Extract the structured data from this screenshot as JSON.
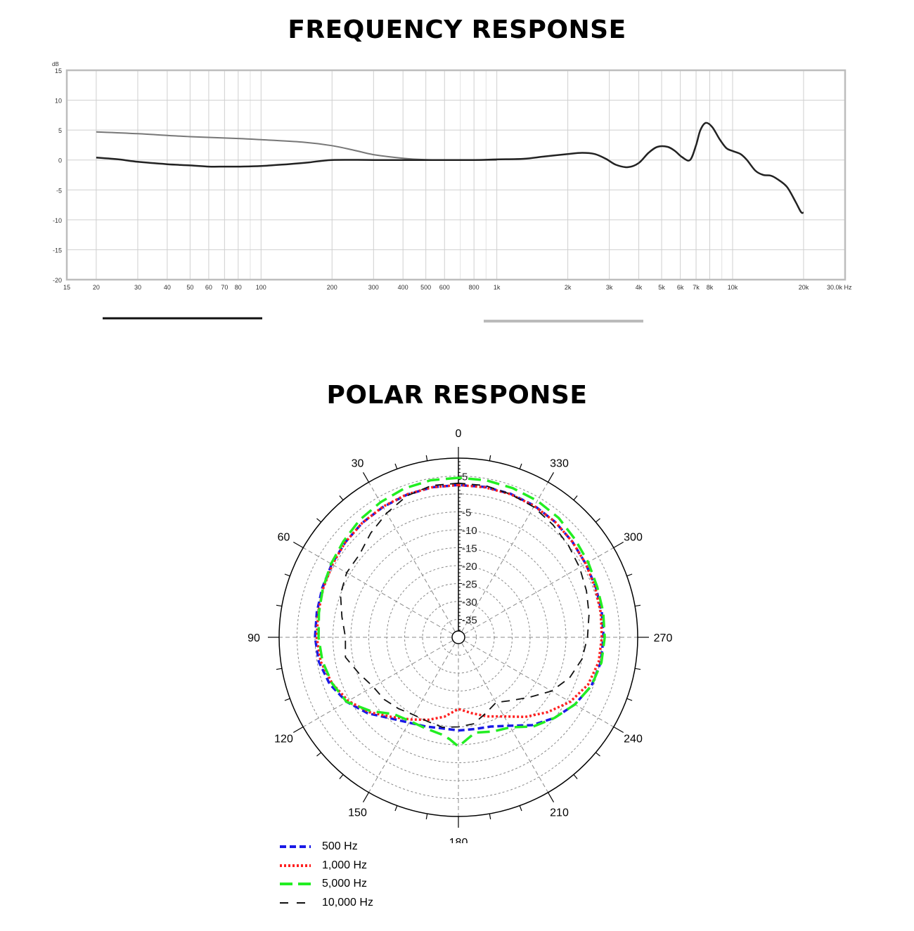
{
  "titles": {
    "frequency": "FREQUENCY RESPONSE",
    "polar": "POLAR RESPONSE"
  },
  "chart_data": [
    {
      "type": "line",
      "title": "FREQUENCY RESPONSE",
      "ylabel": "dB",
      "xunit": "Hz",
      "xscale": "log",
      "xlim": [
        15,
        30000
      ],
      "ylim": [
        -20,
        15
      ],
      "grid": true,
      "x_ticks": [
        {
          "value": 15,
          "label": "15"
        },
        {
          "value": 20,
          "label": "20"
        },
        {
          "value": 30,
          "label": "30"
        },
        {
          "value": 40,
          "label": "40"
        },
        {
          "value": 50,
          "label": "50"
        },
        {
          "value": 60,
          "label": "60"
        },
        {
          "value": 70,
          "label": "70"
        },
        {
          "value": 80,
          "label": "80"
        },
        {
          "value": 100,
          "label": "100"
        },
        {
          "value": 200,
          "label": "200"
        },
        {
          "value": 300,
          "label": "300"
        },
        {
          "value": 400,
          "label": "400"
        },
        {
          "value": 500,
          "label": "500"
        },
        {
          "value": 600,
          "label": "600"
        },
        {
          "value": 800,
          "label": "800"
        },
        {
          "value": 1000,
          "label": "1k"
        },
        {
          "value": 2000,
          "label": "2k"
        },
        {
          "value": 3000,
          "label": "3k"
        },
        {
          "value": 4000,
          "label": "4k"
        },
        {
          "value": 5000,
          "label": "5k"
        },
        {
          "value": 6000,
          "label": "6k"
        },
        {
          "value": 7000,
          "label": "7k"
        },
        {
          "value": 8000,
          "label": "8k"
        },
        {
          "value": 10000,
          "label": "10k"
        },
        {
          "value": 20000,
          "label": "20k"
        },
        {
          "value": 30000,
          "label": "30.0k Hz"
        }
      ],
      "x_minor_grid": [
        90,
        700,
        900,
        9000
      ],
      "y_ticks": [
        15,
        10,
        5,
        0,
        -5,
        -10,
        -15,
        -20
      ],
      "series": [
        {
          "color": "#777777",
          "x": [
            20,
            30,
            50,
            80,
            100,
            150,
            200,
            250,
            300,
            400,
            500,
            600,
            800,
            1000
          ],
          "values": [
            4.7,
            4.4,
            3.9,
            3.6,
            3.4,
            3.0,
            2.4,
            1.6,
            0.9,
            0.3,
            0.05,
            0.0,
            0.0,
            0.0
          ]
        },
        {
          "color": "#222222",
          "x": [
            20,
            25,
            30,
            40,
            50,
            60,
            70,
            80,
            100,
            130,
            160,
            200,
            300,
            500,
            800,
            1000,
            1300,
            1600,
            2000,
            2300,
            2600,
            2900,
            3200,
            3600,
            4000,
            4400,
            4800,
            5300,
            5700,
            6100,
            6600,
            7000,
            7300,
            7700,
            8200,
            8800,
            9400,
            10000,
            10800,
            11500,
            12500,
            13500,
            14500,
            15500,
            17000,
            18500,
            19500,
            20000
          ],
          "values": [
            0.4,
            0.1,
            -0.3,
            -0.7,
            -0.9,
            -1.1,
            -1.1,
            -1.1,
            -1.0,
            -0.7,
            -0.4,
            0.0,
            0.0,
            0.0,
            0.0,
            0.1,
            0.2,
            0.6,
            1.0,
            1.2,
            1.0,
            0.2,
            -0.8,
            -1.2,
            -0.5,
            1.2,
            2.2,
            2.2,
            1.5,
            0.5,
            0.0,
            2.5,
            5.0,
            6.2,
            5.5,
            3.5,
            2.0,
            1.5,
            1.0,
            0.0,
            -1.8,
            -2.5,
            -2.6,
            -3.2,
            -4.5,
            -7.0,
            -8.7,
            -8.8
          ]
        }
      ]
    },
    {
      "type": "polar",
      "title": "POLAR RESPONSE",
      "rlim": [
        -40,
        10
      ],
      "r_ticks": [
        -35,
        -30,
        -25,
        -20,
        -15,
        -10,
        -5,
        0,
        5
      ],
      "r_tick_labels": [
        "-35",
        "-30",
        "-25",
        "-20",
        "-15",
        "-10",
        "-5",
        "",
        "5"
      ],
      "angle_labels": [
        "0",
        "30",
        "60",
        "90",
        "120",
        "150",
        "180",
        "210",
        "240",
        "270",
        "300",
        "330"
      ],
      "angle_direction": "counterclockwise",
      "series": [
        {
          "name": "500 Hz",
          "color": "#1a1ae6",
          "angles": [
            0,
            10,
            20,
            30,
            40,
            50,
            60,
            70,
            80,
            90,
            100,
            110,
            120,
            130,
            140,
            150,
            160,
            170,
            180,
            190,
            200,
            210,
            220,
            230,
            240,
            250,
            260,
            270,
            280,
            290,
            300,
            310,
            320,
            330,
            340,
            350
          ],
          "values": [
            2.5,
            2.5,
            2.3,
            2.0,
            1.7,
            1.2,
            0.8,
            0.4,
            0.1,
            0.0,
            -0.5,
            -1.8,
            -4.0,
            -7.0,
            -10.5,
            -12.5,
            -13.5,
            -14.2,
            -14.0,
            -14.0,
            -13.5,
            -11.5,
            -8.0,
            -5.0,
            -2.5,
            -0.5,
            0.3,
            0.5,
            0.6,
            0.8,
            1.0,
            1.5,
            2.0,
            2.4,
            2.6,
            2.6
          ]
        },
        {
          "name": "1,000 Hz",
          "color": "#ff2020",
          "angles": [
            0,
            10,
            20,
            30,
            40,
            50,
            60,
            70,
            80,
            90,
            100,
            110,
            120,
            130,
            140,
            150,
            160,
            170,
            180,
            190,
            200,
            210,
            220,
            230,
            240,
            250,
            260,
            270,
            280,
            290,
            300,
            310,
            320,
            330,
            340,
            350
          ],
          "values": [
            2.5,
            2.5,
            2.4,
            2.1,
            1.7,
            1.2,
            0.6,
            0.1,
            -0.3,
            -0.5,
            -1.0,
            -2.5,
            -4.5,
            -7.5,
            -11.0,
            -13.5,
            -15.5,
            -17.5,
            -20.0,
            -18.5,
            -16.5,
            -14.5,
            -11.0,
            -7.5,
            -4.0,
            -1.5,
            -0.3,
            0.0,
            0.3,
            0.6,
            1.0,
            1.5,
            2.0,
            2.3,
            2.5,
            2.5
          ]
        },
        {
          "name": "5,000 Hz",
          "color": "#22ee22",
          "angles": [
            0,
            10,
            20,
            30,
            40,
            50,
            60,
            70,
            80,
            90,
            100,
            110,
            120,
            130,
            140,
            150,
            160,
            170,
            175,
            180,
            185,
            190,
            200,
            210,
            220,
            230,
            240,
            250,
            260,
            270,
            280,
            290,
            300,
            310,
            320,
            330,
            340,
            350
          ],
          "values": [
            4.5,
            4.5,
            4.2,
            3.5,
            2.8,
            1.8,
            1.0,
            0.2,
            -0.5,
            -1.0,
            -1.5,
            -2.5,
            -4.0,
            -8.0,
            -12.0,
            -13.0,
            -13.0,
            -12.5,
            -11.5,
            -9.5,
            -11.5,
            -13.0,
            -12.0,
            -11.0,
            -7.5,
            -5.0,
            -2.5,
            -0.5,
            0.5,
            0.8,
            1.0,
            1.2,
            1.8,
            2.5,
            3.5,
            4.0,
            4.3,
            4.5
          ]
        },
        {
          "name": "10,000 Hz",
          "color": "#111111",
          "angles": [
            0,
            10,
            20,
            30,
            40,
            50,
            60,
            70,
            80,
            90,
            100,
            110,
            120,
            130,
            140,
            150,
            160,
            170,
            180,
            190,
            200,
            210,
            220,
            230,
            240,
            250,
            260,
            270,
            280,
            290,
            300,
            310,
            320,
            330,
            340,
            350
          ],
          "values": [
            3.0,
            3.0,
            2.0,
            0.0,
            -2.0,
            -4.0,
            -4.0,
            -5.0,
            -7.0,
            -8.5,
            -8.0,
            -10.5,
            -12.5,
            -13.0,
            -14.0,
            -15.0,
            -15.0,
            -14.5,
            -15.0,
            -15.5,
            -17.5,
            -19.0,
            -17.0,
            -14.0,
            -10.0,
            -7.0,
            -5.0,
            -4.0,
            -3.0,
            -2.0,
            -1.0,
            0.0,
            1.0,
            2.0,
            2.5,
            3.0
          ]
        }
      ]
    }
  ],
  "legend": [
    {
      "label": "500 Hz",
      "color": "#1a1ae6",
      "style": "dashed"
    },
    {
      "label": "1,000 Hz",
      "color": "#ff2020",
      "style": "dotted"
    },
    {
      "label": "5,000 Hz",
      "color": "#22ee22",
      "style": "long-dash"
    },
    {
      "label": "10,000 Hz",
      "color": "#111111",
      "style": "sparse-dash"
    }
  ]
}
